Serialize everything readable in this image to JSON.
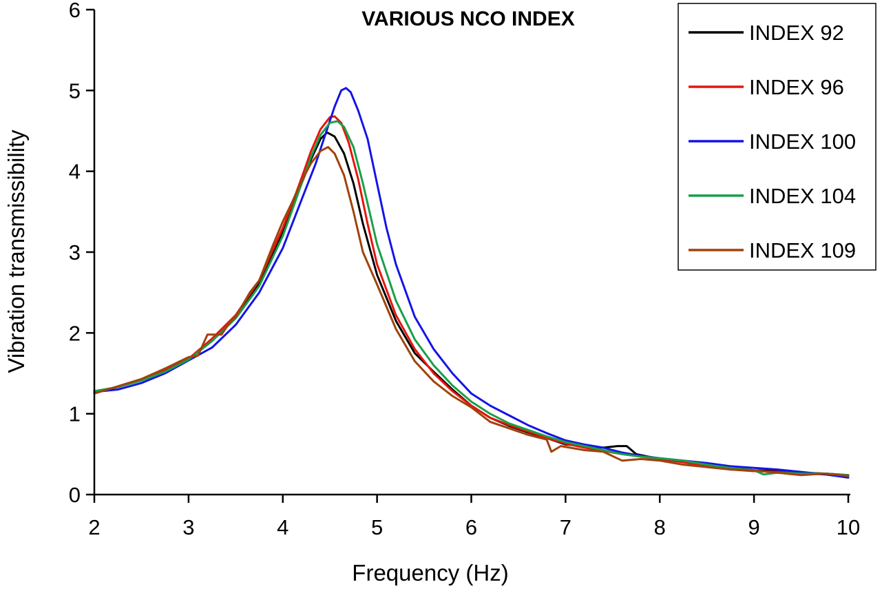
{
  "chart_data": {
    "type": "line",
    "title": "VARIOUS  NCO INDEX",
    "xlabel": "Frequency (Hz)",
    "ylabel": "Vibration transmissibility",
    "xlim": [
      2,
      10
    ],
    "ylim": [
      0,
      6
    ],
    "x_ticks": [
      "2",
      "3",
      "4",
      "5",
      "6",
      "7",
      "8",
      "9",
      "10"
    ],
    "y_ticks": [
      "0",
      "1",
      "2",
      "3",
      "4",
      "5",
      "6"
    ],
    "grid": false,
    "legend_position": "top-right",
    "series": [
      {
        "name": "INDEX 92",
        "color": "#000000",
        "points": [
          [
            2.0,
            1.27
          ],
          [
            2.25,
            1.33
          ],
          [
            2.5,
            1.42
          ],
          [
            2.75,
            1.53
          ],
          [
            3.0,
            1.68
          ],
          [
            3.25,
            1.92
          ],
          [
            3.5,
            2.2
          ],
          [
            3.75,
            2.62
          ],
          [
            4.0,
            3.25
          ],
          [
            4.1,
            3.55
          ],
          [
            4.2,
            3.85
          ],
          [
            4.3,
            4.15
          ],
          [
            4.4,
            4.4
          ],
          [
            4.47,
            4.48
          ],
          [
            4.55,
            4.43
          ],
          [
            4.65,
            4.22
          ],
          [
            4.75,
            3.85
          ],
          [
            4.85,
            3.35
          ],
          [
            5.0,
            2.72
          ],
          [
            5.2,
            2.15
          ],
          [
            5.4,
            1.75
          ],
          [
            5.6,
            1.52
          ],
          [
            5.8,
            1.3
          ],
          [
            6.0,
            1.1
          ],
          [
            6.2,
            0.95
          ],
          [
            6.4,
            0.85
          ],
          [
            6.6,
            0.77
          ],
          [
            6.8,
            0.7
          ],
          [
            7.0,
            0.62
          ],
          [
            7.2,
            0.6
          ],
          [
            7.4,
            0.58
          ],
          [
            7.55,
            0.6
          ],
          [
            7.65,
            0.6
          ],
          [
            7.75,
            0.5
          ],
          [
            8.0,
            0.44
          ],
          [
            8.25,
            0.41
          ],
          [
            8.5,
            0.36
          ],
          [
            8.75,
            0.33
          ],
          [
            9.0,
            0.3
          ],
          [
            9.25,
            0.29
          ],
          [
            9.5,
            0.27
          ],
          [
            9.75,
            0.26
          ],
          [
            10.0,
            0.24
          ]
        ]
      },
      {
        "name": "INDEX 96",
        "color": "#e8140c",
        "points": [
          [
            2.0,
            1.27
          ],
          [
            2.25,
            1.33
          ],
          [
            2.5,
            1.42
          ],
          [
            2.75,
            1.54
          ],
          [
            3.0,
            1.68
          ],
          [
            3.25,
            1.93
          ],
          [
            3.5,
            2.22
          ],
          [
            3.75,
            2.65
          ],
          [
            4.0,
            3.3
          ],
          [
            4.1,
            3.6
          ],
          [
            4.2,
            3.92
          ],
          [
            4.3,
            4.25
          ],
          [
            4.4,
            4.52
          ],
          [
            4.5,
            4.67
          ],
          [
            4.55,
            4.68
          ],
          [
            4.62,
            4.6
          ],
          [
            4.7,
            4.35
          ],
          [
            4.8,
            3.9
          ],
          [
            4.9,
            3.35
          ],
          [
            5.0,
            2.85
          ],
          [
            5.2,
            2.22
          ],
          [
            5.4,
            1.8
          ],
          [
            5.6,
            1.5
          ],
          [
            5.8,
            1.28
          ],
          [
            6.0,
            1.1
          ],
          [
            6.2,
            0.95
          ],
          [
            6.4,
            0.86
          ],
          [
            6.6,
            0.78
          ],
          [
            6.8,
            0.7
          ],
          [
            7.0,
            0.63
          ],
          [
            7.2,
            0.58
          ],
          [
            7.4,
            0.54
          ],
          [
            7.6,
            0.5
          ],
          [
            7.8,
            0.47
          ],
          [
            8.0,
            0.44
          ],
          [
            8.25,
            0.4
          ],
          [
            8.5,
            0.35
          ],
          [
            8.75,
            0.31
          ],
          [
            9.0,
            0.29
          ],
          [
            9.25,
            0.28
          ],
          [
            9.5,
            0.26
          ],
          [
            9.75,
            0.25
          ],
          [
            10.0,
            0.23
          ]
        ]
      },
      {
        "name": "INDEX 100",
        "color": "#1414e6",
        "points": [
          [
            2.0,
            1.27
          ],
          [
            2.25,
            1.3
          ],
          [
            2.5,
            1.38
          ],
          [
            2.75,
            1.5
          ],
          [
            3.0,
            1.66
          ],
          [
            3.25,
            1.82
          ],
          [
            3.5,
            2.1
          ],
          [
            3.75,
            2.5
          ],
          [
            4.0,
            3.05
          ],
          [
            4.2,
            3.65
          ],
          [
            4.35,
            4.1
          ],
          [
            4.45,
            4.45
          ],
          [
            4.55,
            4.8
          ],
          [
            4.62,
            5.0
          ],
          [
            4.67,
            5.03
          ],
          [
            4.72,
            4.98
          ],
          [
            4.8,
            4.75
          ],
          [
            4.9,
            4.4
          ],
          [
            5.0,
            3.85
          ],
          [
            5.1,
            3.3
          ],
          [
            5.2,
            2.85
          ],
          [
            5.4,
            2.2
          ],
          [
            5.6,
            1.8
          ],
          [
            5.8,
            1.5
          ],
          [
            6.0,
            1.25
          ],
          [
            6.2,
            1.1
          ],
          [
            6.4,
            0.98
          ],
          [
            6.6,
            0.86
          ],
          [
            6.8,
            0.76
          ],
          [
            7.0,
            0.67
          ],
          [
            7.2,
            0.62
          ],
          [
            7.4,
            0.58
          ],
          [
            7.6,
            0.52
          ],
          [
            7.8,
            0.48
          ],
          [
            8.0,
            0.45
          ],
          [
            8.25,
            0.42
          ],
          [
            8.5,
            0.39
          ],
          [
            8.75,
            0.35
          ],
          [
            9.0,
            0.33
          ],
          [
            9.25,
            0.31
          ],
          [
            9.5,
            0.28
          ],
          [
            9.75,
            0.25
          ],
          [
            10.0,
            0.21
          ]
        ]
      },
      {
        "name": "INDEX 104",
        "color": "#1a9e4a",
        "points": [
          [
            2.0,
            1.28
          ],
          [
            2.25,
            1.33
          ],
          [
            2.5,
            1.41
          ],
          [
            2.75,
            1.52
          ],
          [
            3.0,
            1.67
          ],
          [
            3.25,
            1.9
          ],
          [
            3.5,
            2.18
          ],
          [
            3.75,
            2.58
          ],
          [
            4.0,
            3.2
          ],
          [
            4.1,
            3.52
          ],
          [
            4.2,
            3.85
          ],
          [
            4.3,
            4.18
          ],
          [
            4.4,
            4.45
          ],
          [
            4.5,
            4.6
          ],
          [
            4.58,
            4.62
          ],
          [
            4.65,
            4.55
          ],
          [
            4.75,
            4.3
          ],
          [
            4.85,
            3.85
          ],
          [
            5.0,
            3.1
          ],
          [
            5.2,
            2.4
          ],
          [
            5.4,
            1.92
          ],
          [
            5.6,
            1.6
          ],
          [
            5.8,
            1.35
          ],
          [
            6.0,
            1.15
          ],
          [
            6.2,
            1.0
          ],
          [
            6.4,
            0.88
          ],
          [
            6.6,
            0.8
          ],
          [
            6.8,
            0.72
          ],
          [
            7.0,
            0.65
          ],
          [
            7.2,
            0.6
          ],
          [
            7.4,
            0.55
          ],
          [
            7.6,
            0.5
          ],
          [
            7.8,
            0.47
          ],
          [
            8.0,
            0.45
          ],
          [
            8.25,
            0.42
          ],
          [
            8.5,
            0.37
          ],
          [
            8.75,
            0.33
          ],
          [
            9.0,
            0.3
          ],
          [
            9.1,
            0.25
          ],
          [
            9.25,
            0.27
          ],
          [
            9.5,
            0.26
          ],
          [
            9.75,
            0.26
          ],
          [
            10.0,
            0.24
          ]
        ]
      },
      {
        "name": "INDEX 109",
        "color": "#a0420c",
        "points": [
          [
            2.0,
            1.25
          ],
          [
            2.25,
            1.34
          ],
          [
            2.5,
            1.43
          ],
          [
            2.75,
            1.56
          ],
          [
            3.0,
            1.7
          ],
          [
            3.1,
            1.72
          ],
          [
            3.2,
            1.98
          ],
          [
            3.35,
            1.98
          ],
          [
            3.45,
            2.15
          ],
          [
            3.5,
            2.2
          ],
          [
            3.65,
            2.5
          ],
          [
            3.75,
            2.65
          ],
          [
            3.9,
            3.1
          ],
          [
            4.0,
            3.38
          ],
          [
            4.1,
            3.62
          ],
          [
            4.2,
            3.88
          ],
          [
            4.3,
            4.1
          ],
          [
            4.4,
            4.25
          ],
          [
            4.48,
            4.3
          ],
          [
            4.55,
            4.22
          ],
          [
            4.65,
            3.95
          ],
          [
            4.75,
            3.5
          ],
          [
            4.85,
            3.0
          ],
          [
            5.0,
            2.6
          ],
          [
            5.2,
            2.05
          ],
          [
            5.4,
            1.65
          ],
          [
            5.6,
            1.4
          ],
          [
            5.8,
            1.22
          ],
          [
            6.0,
            1.08
          ],
          [
            6.2,
            0.9
          ],
          [
            6.4,
            0.82
          ],
          [
            6.6,
            0.74
          ],
          [
            6.8,
            0.68
          ],
          [
            6.85,
            0.53
          ],
          [
            6.95,
            0.6
          ],
          [
            7.2,
            0.55
          ],
          [
            7.4,
            0.53
          ],
          [
            7.6,
            0.42
          ],
          [
            7.8,
            0.44
          ],
          [
            8.0,
            0.42
          ],
          [
            8.25,
            0.37
          ],
          [
            8.5,
            0.34
          ],
          [
            8.75,
            0.31
          ],
          [
            9.0,
            0.3
          ],
          [
            9.25,
            0.27
          ],
          [
            9.5,
            0.24
          ],
          [
            9.75,
            0.26
          ],
          [
            10.0,
            0.23
          ]
        ]
      }
    ]
  }
}
